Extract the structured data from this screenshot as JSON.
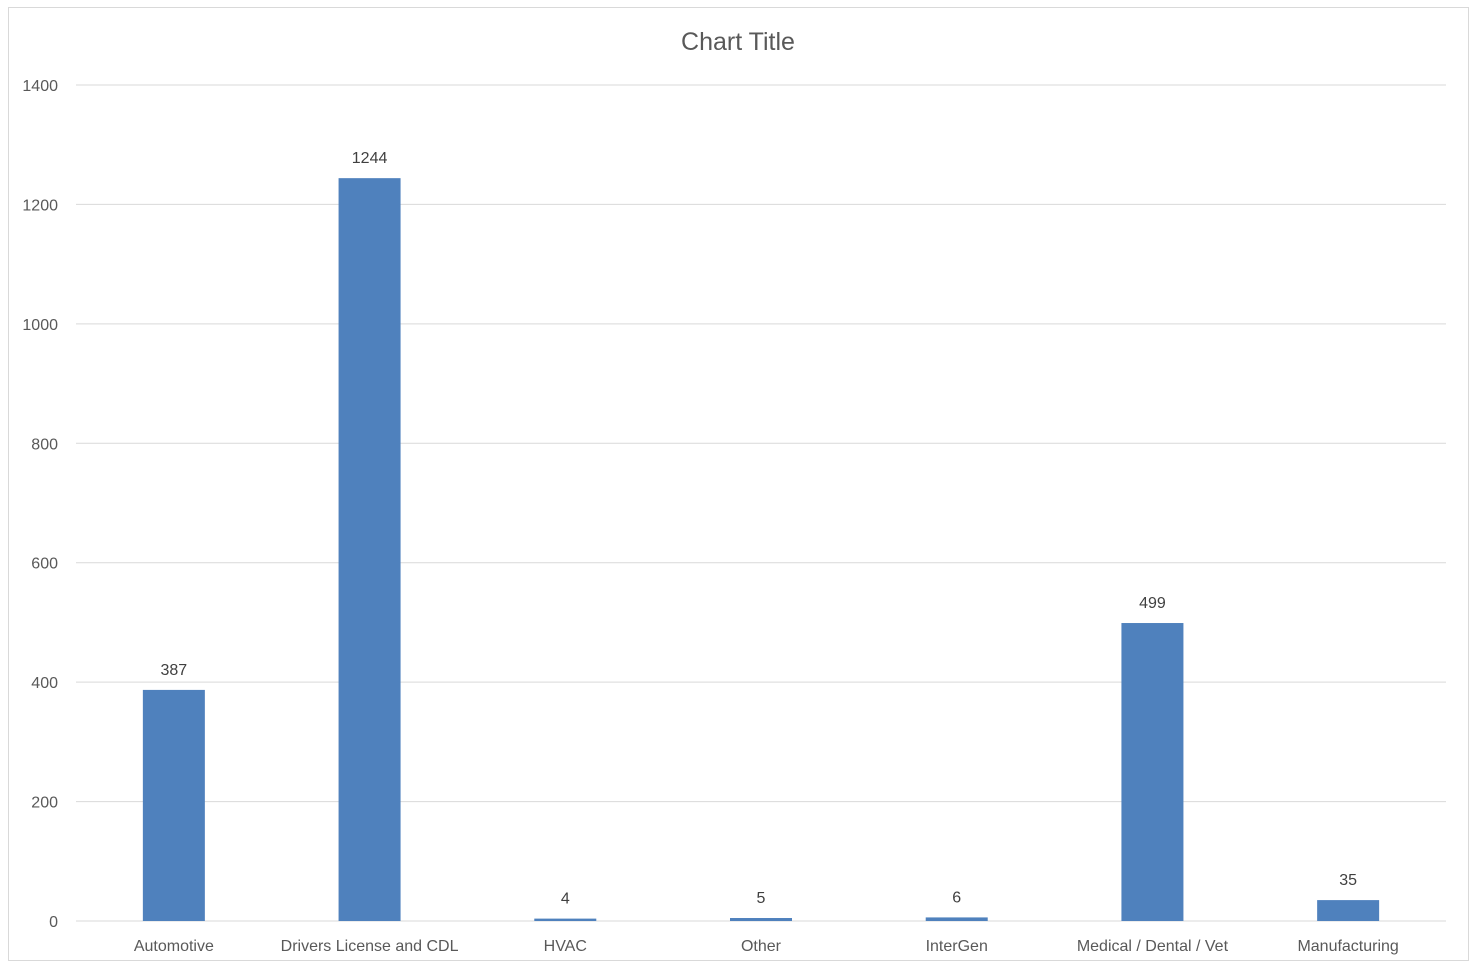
{
  "chart_data": {
    "type": "bar",
    "title": "Chart Title",
    "xlabel": "",
    "ylabel": "",
    "categories": [
      "Automotive",
      "Drivers License and CDL",
      "HVAC",
      "Other",
      "InterGen",
      "Medical / Dental / Vet",
      "Manufacturing"
    ],
    "values": [
      387,
      1244,
      4,
      5,
      6,
      499,
      35
    ],
    "data_labels": [
      "387",
      "1244",
      "4",
      "5",
      "6",
      "499",
      "35"
    ],
    "ylim": [
      0,
      1400
    ],
    "yticks": [
      "0",
      "200",
      "400",
      "600",
      "800",
      "1000",
      "1200",
      "1400"
    ],
    "grid": true,
    "legend": "none",
    "bar_color": "#4f81bd",
    "grid_color": "#d9d9d9"
  }
}
